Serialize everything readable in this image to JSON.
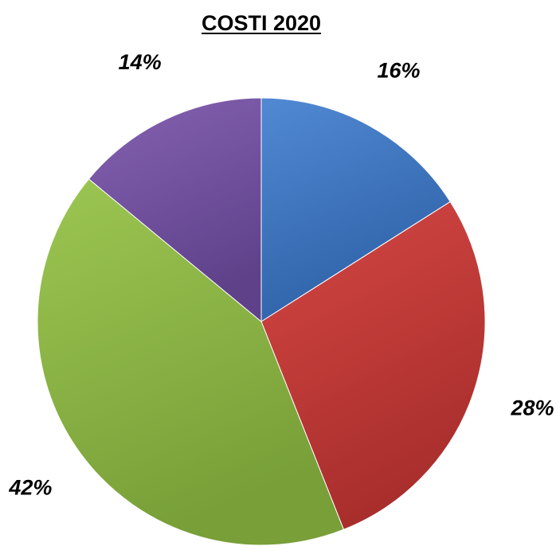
{
  "chart_data": {
    "type": "pie",
    "title": "COSTI 2020",
    "start_angle_deg": 0,
    "direction": "clockwise",
    "labels_shown": "percent",
    "slices": [
      {
        "value": 16,
        "label": "16%",
        "color": "#3c74be",
        "color_light": "#5189d3",
        "color_dark": "#2e62a8"
      },
      {
        "value": 28,
        "label": "28%",
        "color": "#c43a37",
        "color_light": "#d54744",
        "color_dark": "#a82e2c"
      },
      {
        "value": 42,
        "label": "42%",
        "color": "#8ab544",
        "color_light": "#9cc652",
        "color_dark": "#789f38"
      },
      {
        "value": 14,
        "label": "14%",
        "color": "#7451a0",
        "color_light": "#8562b2",
        "color_dark": "#5f418a"
      }
    ]
  }
}
